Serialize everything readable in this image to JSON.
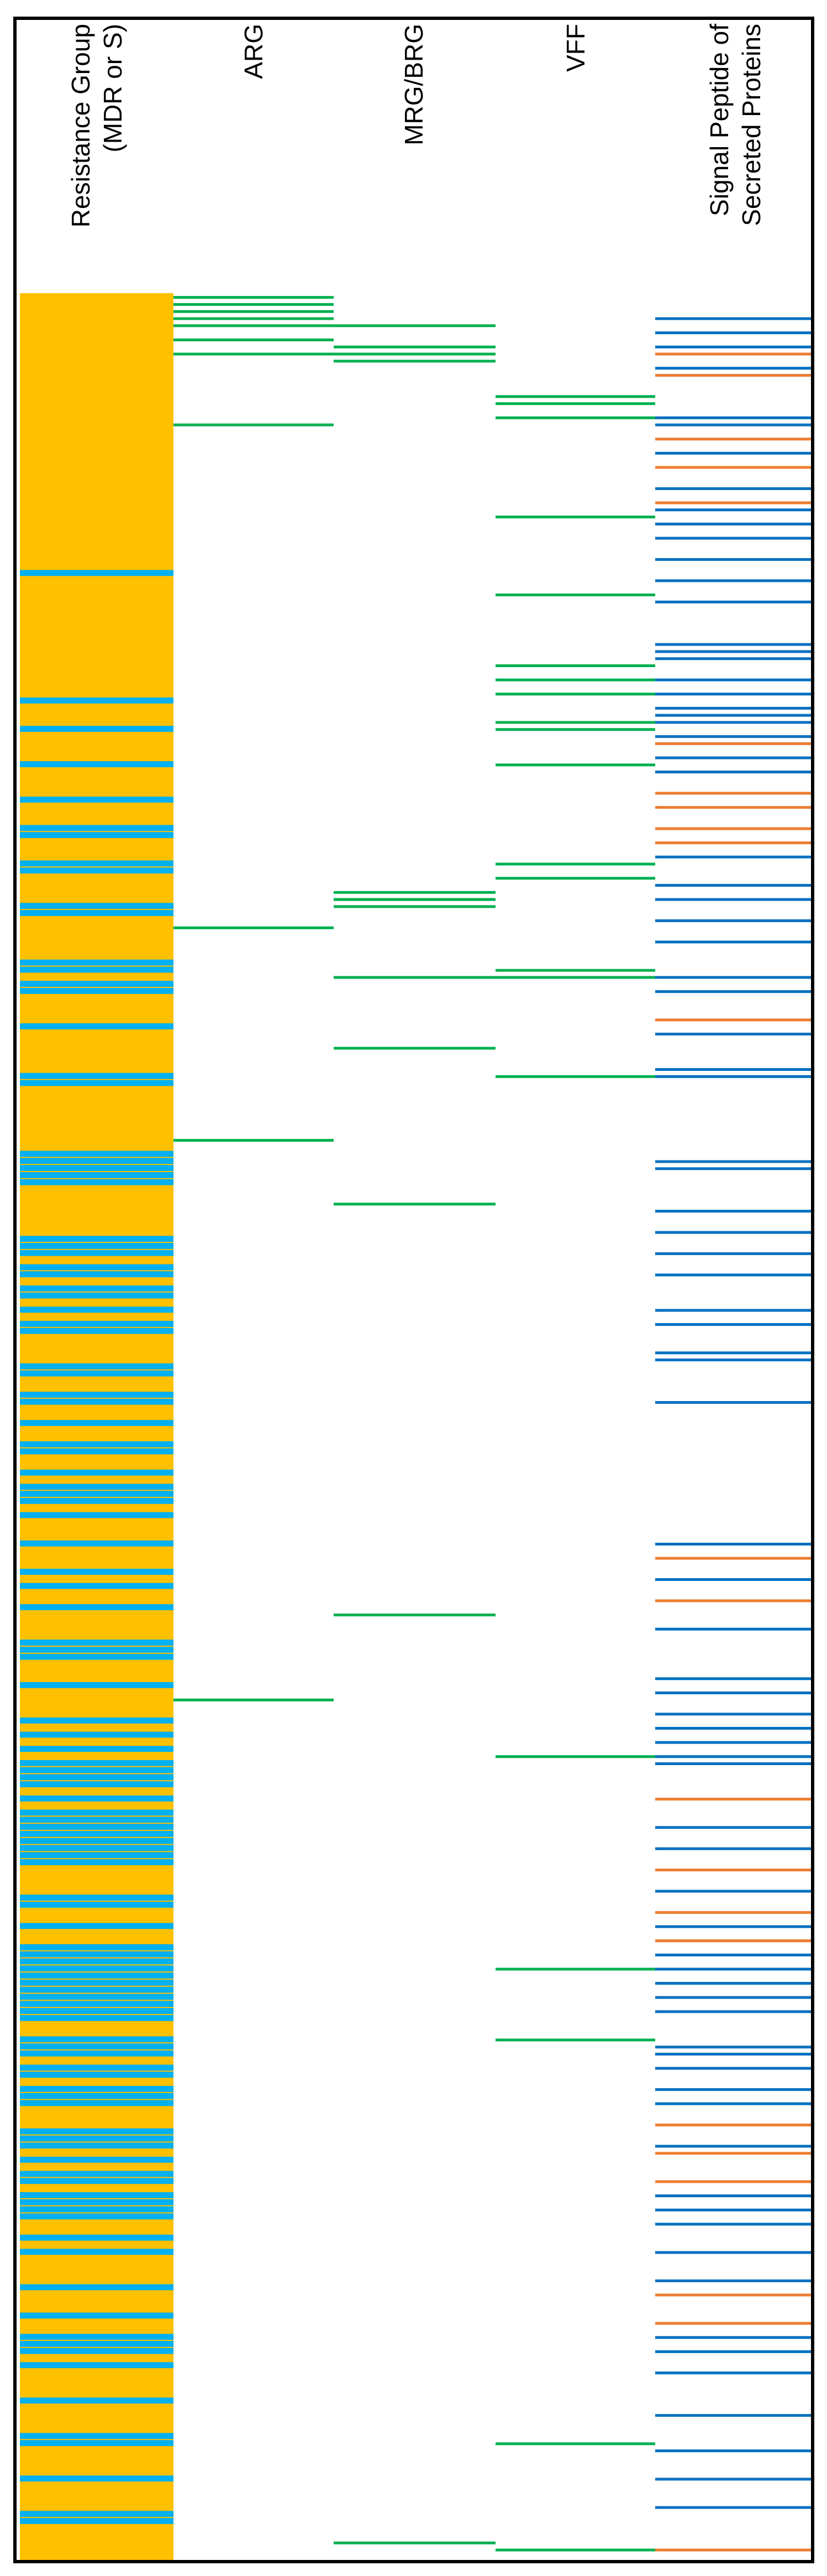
{
  "chart_data": {
    "type": "heatmap",
    "title": "",
    "columns": [
      {
        "id": "resistance",
        "label_lines": [
          "Resistance Group",
          "(MDR or S)"
        ]
      },
      {
        "id": "arg",
        "label_lines": [
          "ARG"
        ]
      },
      {
        "id": "mrg",
        "label_lines": [
          "MRG/BRG"
        ]
      },
      {
        "id": "vff",
        "label_lines": [
          "VFF"
        ]
      },
      {
        "id": "signal",
        "label_lines": [
          "Signal Peptide of",
          "Secreted Proteins"
        ]
      }
    ],
    "n_rows": 320,
    "colors": {
      "mdr": "#FFC000",
      "s": "#00B0F0",
      "hit": "#00B050",
      "signal_a": "#0070C0",
      "signal_b": "#ED7D31"
    },
    "legend": [],
    "resistance_s_rows": [
      39,
      57,
      61,
      66,
      71,
      75,
      76,
      80,
      81,
      86,
      87,
      94,
      95,
      97,
      98,
      103,
      110,
      111,
      121,
      122,
      123,
      124,
      125,
      133,
      134,
      135,
      137,
      138,
      140,
      141,
      143,
      145,
      146,
      151,
      152,
      155,
      156,
      159,
      162,
      163,
      166,
      168,
      169,
      170,
      172,
      176,
      180,
      182,
      185,
      190,
      191,
      192,
      196,
      201,
      203,
      205,
      207,
      208,
      209,
      210,
      212,
      214,
      215,
      216,
      217,
      218,
      219,
      220,
      221,
      226,
      227,
      230,
      233,
      234,
      235,
      236,
      237,
      238,
      239,
      240,
      241,
      242,
      243,
      246,
      247,
      248,
      250,
      251,
      253,
      254,
      255,
      259,
      260,
      261,
      263,
      265,
      266,
      268,
      269,
      270,
      271,
      274,
      276,
      281,
      285,
      288,
      289,
      290,
      292,
      297,
      302,
      303,
      308,
      313,
      314
    ],
    "arg_rows": [
      0,
      1,
      2,
      3,
      4,
      6,
      8,
      18,
      89,
      119,
      198
    ],
    "mrg_rows": [
      4,
      7,
      8,
      9,
      84,
      85,
      85,
      86,
      96,
      106,
      128,
      186,
      317
    ],
    "vff_rows": [
      14,
      15,
      17,
      31,
      42,
      52,
      54,
      56,
      60,
      61,
      66,
      80,
      82,
      95,
      96,
      110,
      206,
      236,
      246,
      303,
      318
    ],
    "signal_rows": [
      {
        "row": 3,
        "c": "a"
      },
      {
        "row": 5,
        "c": "a"
      },
      {
        "row": 7,
        "c": "a"
      },
      {
        "row": 8,
        "c": "b"
      },
      {
        "row": 10,
        "c": "a"
      },
      {
        "row": 11,
        "c": "b"
      },
      {
        "row": 17,
        "c": "a"
      },
      {
        "row": 18,
        "c": "a"
      },
      {
        "row": 20,
        "c": "b"
      },
      {
        "row": 22,
        "c": "a"
      },
      {
        "row": 24,
        "c": "b"
      },
      {
        "row": 27,
        "c": "a"
      },
      {
        "row": 29,
        "c": "b"
      },
      {
        "row": 30,
        "c": "a"
      },
      {
        "row": 32,
        "c": "a"
      },
      {
        "row": 34,
        "c": "a"
      },
      {
        "row": 37,
        "c": "a"
      },
      {
        "row": 40,
        "c": "a"
      },
      {
        "row": 43,
        "c": "a"
      },
      {
        "row": 49,
        "c": "a"
      },
      {
        "row": 50,
        "c": "a"
      },
      {
        "row": 51,
        "c": "a"
      },
      {
        "row": 54,
        "c": "a"
      },
      {
        "row": 56,
        "c": "a"
      },
      {
        "row": 58,
        "c": "a"
      },
      {
        "row": 59,
        "c": "a"
      },
      {
        "row": 60,
        "c": "a"
      },
      {
        "row": 62,
        "c": "a"
      },
      {
        "row": 63,
        "c": "b"
      },
      {
        "row": 65,
        "c": "a"
      },
      {
        "row": 67,
        "c": "a"
      },
      {
        "row": 70,
        "c": "b"
      },
      {
        "row": 72,
        "c": "b"
      },
      {
        "row": 75,
        "c": "b"
      },
      {
        "row": 77,
        "c": "b"
      },
      {
        "row": 79,
        "c": "a"
      },
      {
        "row": 83,
        "c": "a"
      },
      {
        "row": 85,
        "c": "a"
      },
      {
        "row": 88,
        "c": "a"
      },
      {
        "row": 91,
        "c": "a"
      },
      {
        "row": 96,
        "c": "a"
      },
      {
        "row": 98,
        "c": "a"
      },
      {
        "row": 102,
        "c": "b"
      },
      {
        "row": 104,
        "c": "a"
      },
      {
        "row": 109,
        "c": "a"
      },
      {
        "row": 110,
        "c": "a"
      },
      {
        "row": 122,
        "c": "a"
      },
      {
        "row": 123,
        "c": "a"
      },
      {
        "row": 129,
        "c": "a"
      },
      {
        "row": 132,
        "c": "a"
      },
      {
        "row": 135,
        "c": "a"
      },
      {
        "row": 138,
        "c": "a"
      },
      {
        "row": 143,
        "c": "a"
      },
      {
        "row": 145,
        "c": "a"
      },
      {
        "row": 149,
        "c": "a"
      },
      {
        "row": 150,
        "c": "a"
      },
      {
        "row": 156,
        "c": "a"
      },
      {
        "row": 176,
        "c": "a"
      },
      {
        "row": 178,
        "c": "b"
      },
      {
        "row": 181,
        "c": "a"
      },
      {
        "row": 184,
        "c": "b"
      },
      {
        "row": 188,
        "c": "a"
      },
      {
        "row": 195,
        "c": "a"
      },
      {
        "row": 197,
        "c": "a"
      },
      {
        "row": 200,
        "c": "a"
      },
      {
        "row": 202,
        "c": "a"
      },
      {
        "row": 204,
        "c": "a"
      },
      {
        "row": 206,
        "c": "a"
      },
      {
        "row": 207,
        "c": "a"
      },
      {
        "row": 212,
        "c": "b"
      },
      {
        "row": 216,
        "c": "a"
      },
      {
        "row": 219,
        "c": "a"
      },
      {
        "row": 222,
        "c": "b"
      },
      {
        "row": 225,
        "c": "a"
      },
      {
        "row": 228,
        "c": "b"
      },
      {
        "row": 230,
        "c": "a"
      },
      {
        "row": 232,
        "c": "b"
      },
      {
        "row": 234,
        "c": "a"
      },
      {
        "row": 236,
        "c": "a"
      },
      {
        "row": 238,
        "c": "a"
      },
      {
        "row": 240,
        "c": "a"
      },
      {
        "row": 242,
        "c": "a"
      },
      {
        "row": 247,
        "c": "a"
      },
      {
        "row": 248,
        "c": "a"
      },
      {
        "row": 250,
        "c": "a"
      },
      {
        "row": 253,
        "c": "a"
      },
      {
        "row": 255,
        "c": "a"
      },
      {
        "row": 258,
        "c": "b"
      },
      {
        "row": 261,
        "c": "a"
      },
      {
        "row": 262,
        "c": "b"
      },
      {
        "row": 266,
        "c": "b"
      },
      {
        "row": 268,
        "c": "a"
      },
      {
        "row": 270,
        "c": "a"
      },
      {
        "row": 272,
        "c": "a"
      },
      {
        "row": 276,
        "c": "a"
      },
      {
        "row": 280,
        "c": "a"
      },
      {
        "row": 282,
        "c": "b"
      },
      {
        "row": 286,
        "c": "b"
      },
      {
        "row": 288,
        "c": "a"
      },
      {
        "row": 290,
        "c": "a"
      },
      {
        "row": 293,
        "c": "a"
      },
      {
        "row": 299,
        "c": "a"
      },
      {
        "row": 304,
        "c": "a"
      },
      {
        "row": 308,
        "c": "a"
      },
      {
        "row": 312,
        "c": "a"
      },
      {
        "row": 318,
        "c": "b"
      }
    ]
  }
}
